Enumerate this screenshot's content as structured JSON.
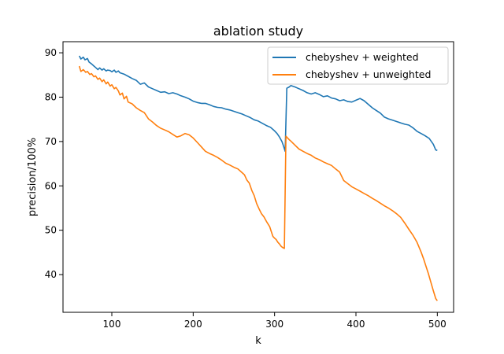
{
  "chart_data": {
    "type": "line",
    "title": "ablation study",
    "xlabel": "k",
    "ylabel": "precision/100%",
    "xlim": [
      40,
      520
    ],
    "ylim": [
      31.5,
      92.5
    ],
    "xticks": [
      100,
      200,
      300,
      400,
      500
    ],
    "yticks": [
      40,
      50,
      60,
      70,
      80,
      90
    ],
    "grid": false,
    "legend_position": "top-right",
    "series": [
      {
        "name": "chebyshev + weighted",
        "color": "#1f77b4",
        "x": [
          60,
          62,
          65,
          67,
          70,
          72,
          75,
          78,
          80,
          83,
          85,
          88,
          90,
          93,
          95,
          98,
          100,
          103,
          105,
          108,
          110,
          115,
          120,
          125,
          130,
          135,
          140,
          145,
          150,
          155,
          160,
          165,
          170,
          175,
          180,
          185,
          190,
          195,
          200,
          205,
          210,
          215,
          220,
          225,
          230,
          235,
          240,
          245,
          250,
          255,
          260,
          265,
          270,
          275,
          280,
          285,
          290,
          295,
          300,
          303,
          306,
          309,
          311,
          313,
          315,
          318,
          320,
          325,
          330,
          335,
          340,
          345,
          350,
          355,
          360,
          365,
          370,
          375,
          380,
          385,
          390,
          395,
          400,
          405,
          410,
          415,
          420,
          425,
          430,
          435,
          440,
          445,
          450,
          455,
          460,
          465,
          470,
          475,
          480,
          485,
          490,
          495,
          498,
          500
        ],
        "y": [
          89.3,
          88.6,
          89.0,
          88.4,
          88.7,
          87.9,
          87.5,
          87.0,
          86.7,
          86.2,
          86.6,
          86.1,
          86.4,
          85.9,
          86.1,
          86.0,
          85.7,
          86.1,
          85.6,
          85.9,
          85.5,
          85.2,
          84.7,
          84.2,
          83.8,
          82.9,
          83.2,
          82.3,
          81.9,
          81.5,
          81.1,
          81.2,
          80.8,
          81.0,
          80.7,
          80.3,
          80.0,
          79.6,
          79.1,
          78.8,
          78.6,
          78.6,
          78.3,
          77.9,
          77.7,
          77.6,
          77.3,
          77.1,
          76.8,
          76.5,
          76.2,
          75.8,
          75.4,
          74.9,
          74.6,
          74.1,
          73.6,
          73.2,
          72.4,
          71.8,
          71.0,
          70.0,
          69.0,
          67.8,
          82.0,
          82.3,
          82.6,
          82.3,
          81.9,
          81.5,
          81.0,
          80.7,
          81.0,
          80.6,
          80.1,
          80.3,
          79.8,
          79.6,
          79.2,
          79.4,
          79.0,
          78.9,
          79.3,
          79.7,
          79.2,
          78.4,
          77.6,
          77.0,
          76.4,
          75.5,
          75.1,
          74.8,
          74.5,
          74.2,
          73.9,
          73.7,
          73.1,
          72.3,
          71.8,
          71.3,
          70.7,
          69.4,
          68.1,
          68.0
        ]
      },
      {
        "name": "chebyshev + unweighted",
        "color": "#ff7f0e",
        "x": [
          60,
          62,
          65,
          68,
          70,
          73,
          75,
          78,
          80,
          83,
          85,
          88,
          90,
          93,
          95,
          98,
          100,
          103,
          105,
          108,
          110,
          113,
          115,
          118,
          120,
          125,
          130,
          135,
          140,
          145,
          150,
          155,
          160,
          165,
          170,
          175,
          180,
          185,
          190,
          195,
          200,
          205,
          210,
          215,
          220,
          225,
          230,
          235,
          240,
          245,
          250,
          255,
          260,
          263,
          266,
          269,
          272,
          275,
          278,
          281,
          284,
          287,
          290,
          292,
          294,
          296,
          298,
          300,
          302,
          304,
          306,
          308,
          310,
          312,
          314,
          316,
          318,
          320,
          325,
          330,
          335,
          340,
          345,
          350,
          355,
          360,
          365,
          370,
          375,
          380,
          385,
          390,
          395,
          400,
          405,
          410,
          415,
          420,
          425,
          430,
          435,
          440,
          445,
          450,
          455,
          460,
          465,
          470,
          475,
          480,
          483,
          486,
          489,
          492,
          495,
          498,
          500
        ],
        "y": [
          87.0,
          85.8,
          86.2,
          85.6,
          85.8,
          85.1,
          85.3,
          84.6,
          84.8,
          84.0,
          84.3,
          83.5,
          83.9,
          83.0,
          83.4,
          82.5,
          82.8,
          81.9,
          82.2,
          81.4,
          80.5,
          80.9,
          79.6,
          80.2,
          78.9,
          78.5,
          77.6,
          77.0,
          76.5,
          75.1,
          74.4,
          73.6,
          73.0,
          72.6,
          72.2,
          71.6,
          71.0,
          71.3,
          71.8,
          71.5,
          70.8,
          69.8,
          68.8,
          67.8,
          67.3,
          66.9,
          66.4,
          65.8,
          65.1,
          64.7,
          64.2,
          63.8,
          63.0,
          62.5,
          61.3,
          60.6,
          59.0,
          57.8,
          56.0,
          54.8,
          53.7,
          53.0,
          52.0,
          51.4,
          50.8,
          49.7,
          48.6,
          48.2,
          47.9,
          47.3,
          46.9,
          46.4,
          46.1,
          45.9,
          71.2,
          70.8,
          70.4,
          70.1,
          69.2,
          68.3,
          67.8,
          67.3,
          66.9,
          66.3,
          65.9,
          65.4,
          65.0,
          64.6,
          63.8,
          63.1,
          61.2,
          60.5,
          59.8,
          59.3,
          58.8,
          58.3,
          57.8,
          57.2,
          56.7,
          56.1,
          55.5,
          55.0,
          54.4,
          53.7,
          52.9,
          51.6,
          50.2,
          48.9,
          47.3,
          45.1,
          43.6,
          41.9,
          40.2,
          38.3,
          36.4,
          34.6,
          34.1
        ]
      }
    ]
  }
}
